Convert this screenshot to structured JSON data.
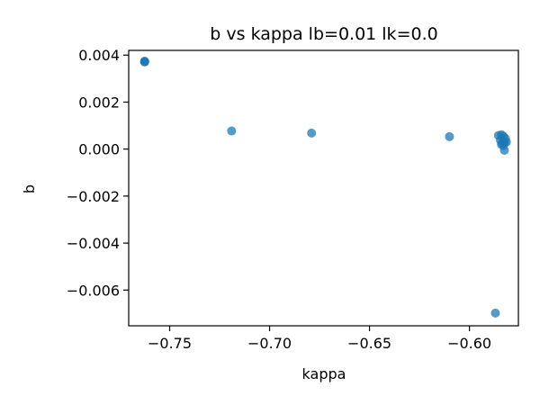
{
  "chart_data": {
    "type": "scatter",
    "title": "b vs kappa lb=0.01 lk=0.0",
    "xlabel": "kappa",
    "ylabel": "b",
    "xlim": [
      -0.7705,
      -0.5755
    ],
    "ylim": [
      -0.00752,
      0.0042
    ],
    "xticks": [
      -0.75,
      -0.7,
      -0.65,
      -0.6
    ],
    "xtick_labels": [
      "−0.75",
      "−0.70",
      "−0.65",
      "−0.60"
    ],
    "yticks": [
      0.004,
      0.002,
      0.0,
      -0.002,
      -0.004,
      -0.006
    ],
    "ytick_labels": [
      "0.004",
      "0.002",
      "0.000",
      "−0.002",
      "−0.004",
      "−0.006"
    ],
    "grid": false,
    "point_color": "#1f77b4",
    "series": [
      {
        "x": [
          -0.7625,
          -0.7625,
          -0.7625,
          -0.719,
          -0.679,
          -0.61,
          -0.5855,
          -0.584,
          -0.583,
          -0.582,
          -0.5845,
          -0.583,
          -0.5825,
          -0.5835,
          -0.584,
          -0.5815,
          -0.583,
          -0.5825,
          -0.587
        ],
        "y": [
          0.00372,
          0.00374,
          0.00371,
          0.00077,
          0.00068,
          0.00053,
          0.00058,
          0.00061,
          0.00055,
          0.00045,
          0.00038,
          0.00032,
          0.00028,
          0.00025,
          0.0002,
          0.0003,
          0.00015,
          -5e-05,
          -0.00698
        ]
      }
    ]
  }
}
